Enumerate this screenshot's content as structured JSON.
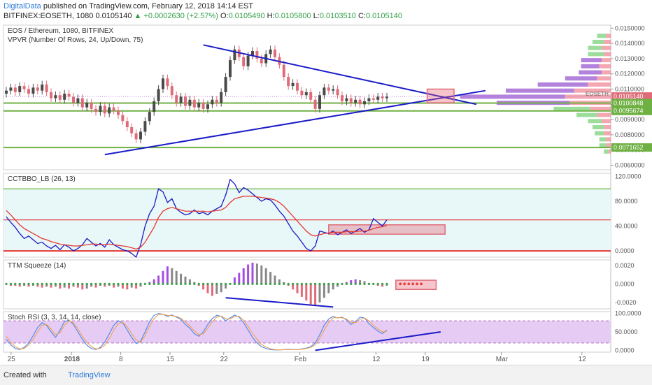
{
  "header": {
    "author": "DigitalData",
    "published_text": "published on TradingView.com, February 12, 2018 14:14 EST",
    "symbol": "BITFINEX:EOSETH, 1080",
    "last": "0.0105140",
    "change": "+0.0002630 (+2.57%)",
    "o_label": "O:",
    "o_value": "0.0105490",
    "h_label": "H:",
    "h_value": "0.0105800",
    "l_label": "L:",
    "l_value": "0.0103510",
    "c_label": "C:",
    "c_value": "0.0105140"
  },
  "footer": {
    "created_with": "Created with",
    "brand": "TradingView"
  },
  "colors": {
    "up": "#4a4a4a",
    "down": "#e06b78",
    "trend": "#1a1ac8",
    "support": "#6fb043",
    "signal": "#e53935",
    "squeeze_pos": "#a64ce0",
    "vpvr_up": "#7bd17b",
    "vpvr_down": "#f08a95",
    "vpvr_purple": "#9a58d0"
  },
  "chart_data": [
    {
      "type": "candlestick",
      "title": "EOS / Ethereum, 1080, BITFINEX",
      "subtitle": "VPVR (Number Of Rows, 24, Up/Down, 75)",
      "x_ticks": [
        "25",
        "2018",
        "8",
        "15",
        "22",
        "Feb",
        "12",
        "19",
        "Mar",
        "12"
      ],
      "ylim": [
        0.0057,
        0.0152
      ],
      "y_ticks": [
        "0.0150000",
        "0.0140000",
        "0.0130000",
        "0.0120000",
        "0.0110000",
        "0.0100000",
        "0.0090000",
        "0.0080000",
        "0.0070000",
        "0.0060000"
      ],
      "price_labels": [
        {
          "text": "0.0105140",
          "value": 0.010514,
          "color": "#e06b78"
        },
        {
          "text": "0.0100848",
          "value": 0.0100848,
          "color": "#6fb043"
        },
        {
          "text": "0.0095674",
          "value": 0.0095674,
          "color": "#6fb043"
        },
        {
          "text": "0.0071652",
          "value": 0.0071652,
          "color": "#6fb043"
        }
      ],
      "support_levels": [
        0.0100848,
        0.0095674,
        0.0071652
      ],
      "last_price": 0.010514,
      "vpvr_marker": "EOSETH",
      "closes": [
        0.0109,
        0.0111,
        0.0108,
        0.0112,
        0.011,
        0.0107,
        0.0111,
        0.0109,
        0.0113,
        0.0108,
        0.0104,
        0.0106,
        0.0103,
        0.0107,
        0.0105,
        0.0101,
        0.0104,
        0.0098,
        0.0101,
        0.0097,
        0.0095,
        0.0099,
        0.0094,
        0.0098,
        0.0096,
        0.0093,
        0.0089,
        0.0085,
        0.0081,
        0.0077,
        0.0082,
        0.0089,
        0.0095,
        0.0102,
        0.011,
        0.0117,
        0.0112,
        0.0106,
        0.0101,
        0.0105,
        0.0099,
        0.0103,
        0.0098,
        0.0101,
        0.0097,
        0.01,
        0.0103,
        0.0101,
        0.0108,
        0.0118,
        0.0129,
        0.0136,
        0.0131,
        0.0125,
        0.0132,
        0.0135,
        0.013,
        0.0127,
        0.0133,
        0.0136,
        0.0131,
        0.0126,
        0.0118,
        0.0112,
        0.0114,
        0.0109,
        0.0106,
        0.0108,
        0.0103,
        0.0097,
        0.0106,
        0.0111,
        0.0109,
        0.011,
        0.0106,
        0.0102,
        0.0104,
        0.0101,
        0.0103,
        0.01,
        0.0102,
        0.0104,
        0.0103,
        0.0105,
        0.0104,
        0.0105
      ],
      "trendlines": [
        {
          "from": [
            44,
            0.0139
          ],
          "to": [
            105,
            0.01
          ]
        },
        {
          "from": [
            22,
            0.0067
          ],
          "to": [
            107,
            0.0109
          ]
        }
      ],
      "highlight_box": {
        "x": [
          94,
          100
        ],
        "y": [
          0.0101,
          0.011
        ]
      },
      "vpvr": [
        {
          "price": 0.0145,
          "up": 0.4,
          "down": 0.2
        },
        {
          "price": 0.0141,
          "up": 0.5,
          "down": 0.3
        },
        {
          "price": 0.0137,
          "up": 0.6,
          "down": 0.4
        },
        {
          "price": 0.0133,
          "up": 0.7,
          "down": 0.3
        },
        {
          "price": 0.0129,
          "up": 0.9,
          "down": 0.4,
          "purple": true
        },
        {
          "price": 0.0125,
          "up": 0.8,
          "down": 0.5,
          "purple": true
        },
        {
          "price": 0.0121,
          "up": 1.0,
          "down": 0.4,
          "purple": true
        },
        {
          "price": 0.0117,
          "up": 1.4,
          "down": 0.6,
          "purple": true
        },
        {
          "price": 0.0113,
          "up": 2.2,
          "down": 1.0,
          "purple": true
        },
        {
          "price": 0.0109,
          "up": 3.0,
          "down": 1.6,
          "purple": true
        },
        {
          "price": 0.0105,
          "up": 4.6,
          "down": 2.0,
          "purple": true
        },
        {
          "price": 0.0101,
          "up": 3.2,
          "down": 1.8,
          "purple": true
        },
        {
          "price": 0.0097,
          "up": 1.6,
          "down": 0.9
        },
        {
          "price": 0.0093,
          "up": 0.9,
          "down": 0.6
        },
        {
          "price": 0.0089,
          "up": 0.6,
          "down": 0.4
        },
        {
          "price": 0.0085,
          "up": 0.5,
          "down": 0.3
        },
        {
          "price": 0.0081,
          "up": 0.4,
          "down": 0.3
        },
        {
          "price": 0.0077,
          "up": 0.3,
          "down": 0.2
        },
        {
          "price": 0.0073,
          "up": 0.3,
          "down": 0.2
        },
        {
          "price": 0.0069,
          "up": 0.2,
          "down": 0.1
        }
      ]
    },
    {
      "type": "line",
      "title": "CCTBBO_LB (26, 13)",
      "ylim": [
        -10,
        125
      ],
      "y_ticks": [
        "120.0000",
        "80.0000",
        "40.0000",
        "0.0000"
      ],
      "levels": [
        {
          "value": 100,
          "color": "#6fb043"
        },
        {
          "value": 50,
          "color": "#e53935"
        },
        {
          "value": 0,
          "color": "#e53935"
        }
      ],
      "series": [
        {
          "color": "#1a1ac8",
          "values": [
            55,
            46,
            38,
            28,
            20,
            24,
            18,
            12,
            14,
            8,
            4,
            9,
            2,
            10,
            6,
            0,
            4,
            10,
            20,
            14,
            8,
            12,
            6,
            18,
            10,
            6,
            2,
            0,
            -4,
            -10,
            10,
            40,
            60,
            72,
            100,
            95,
            78,
            84,
            68,
            62,
            58,
            60,
            66,
            60,
            62,
            58,
            64,
            68,
            72,
            90,
            115,
            108,
            94,
            102,
            98,
            92,
            86,
            80,
            84,
            82,
            74,
            64,
            56,
            44,
            32,
            24,
            14,
            4,
            0,
            8,
            32,
            30,
            28,
            32,
            26,
            30,
            34,
            28,
            32,
            36,
            30,
            34,
            52,
            46,
            40,
            50
          ]
        },
        {
          "color": "#e53935",
          "values": [
            65,
            58,
            50,
            42,
            36,
            32,
            28,
            24,
            20,
            18,
            15,
            13,
            11,
            10,
            9,
            8,
            8,
            9,
            10,
            11,
            11,
            10,
            10,
            11,
            10,
            9,
            8,
            7,
            5,
            3,
            6,
            14,
            26,
            38,
            54,
            64,
            68,
            70,
            68,
            66,
            64,
            64,
            64,
            64,
            64,
            63,
            64,
            65,
            66,
            70,
            78,
            84,
            86,
            88,
            88,
            88,
            87,
            86,
            85,
            84,
            82,
            78,
            72,
            64,
            56,
            48,
            40,
            32,
            26,
            24,
            26,
            28,
            29,
            30,
            30,
            30,
            31,
            31,
            31,
            32,
            32,
            33,
            36,
            38,
            39,
            41
          ]
        }
      ],
      "highlight_box": {
        "x": [
          72,
          98
        ],
        "y": [
          27,
          42
        ]
      }
    },
    {
      "type": "bar",
      "title": "TTM Squeeze (14)",
      "ylim": [
        -0.0027,
        0.0026
      ],
      "y_ticks": [
        "0.0020",
        "0.0000",
        "-0.0020"
      ],
      "values": [
        -0.0001,
        -0.0002,
        -0.0002,
        -0.0003,
        -0.0002,
        -0.0003,
        -0.0002,
        -0.0003,
        -0.0004,
        -0.0003,
        -0.0004,
        -0.0003,
        -0.0005,
        -0.0004,
        -0.0005,
        -0.0003,
        -0.0004,
        -0.0006,
        -0.0005,
        -0.0003,
        -0.0004,
        -0.0002,
        -0.0003,
        -0.0002,
        -0.0004,
        -0.0003,
        -0.0005,
        -0.0006,
        -0.0004,
        -0.0005,
        -0.0003,
        -0.0001,
        0.0002,
        0.0005,
        0.0009,
        0.0014,
        0.0019,
        0.0017,
        0.0014,
        0.0011,
        0.0008,
        0.0005,
        0.0002,
        -0.0002,
        -0.0006,
        -0.001,
        -0.0013,
        -0.0011,
        -0.0009,
        -0.0005,
        0.0001,
        0.0007,
        0.0012,
        0.0017,
        0.0021,
        0.0023,
        0.0022,
        0.002,
        0.0017,
        0.0013,
        0.0009,
        0.0005,
        0.0002,
        -0.0002,
        -0.0006,
        -0.001,
        -0.0014,
        -0.0018,
        -0.0022,
        -0.0024,
        -0.002,
        -0.0015,
        -0.001,
        -0.0006,
        -0.0003,
        0.0,
        0.0002,
        0.0004,
        0.0005,
        0.0004,
        0.0003,
        0.0001,
        -0.0001,
        -0.0002,
        -0.0003,
        -0.0002
      ],
      "trendline": {
        "from": [
          49,
          -0.0015
        ],
        "to": [
          73,
          -0.0025
        ]
      },
      "highlight_box": {
        "x": [
          87,
          96
        ],
        "y": [
          -0.0006,
          0.0004
        ]
      }
    },
    {
      "type": "line",
      "title": "Stoch RSI (3, 3, 14, 14, close)",
      "ylim": [
        -5,
        105
      ],
      "y_ticks": [
        "100.0000",
        "50.0000",
        "0.0000"
      ],
      "band": [
        20,
        80
      ],
      "series": [
        {
          "color": "#4a86e8",
          "values": [
            30,
            15,
            5,
            2,
            8,
            20,
            40,
            62,
            75,
            68,
            50,
            35,
            55,
            78,
            82,
            70,
            50,
            30,
            14,
            5,
            2,
            8,
            22,
            45,
            68,
            80,
            75,
            55,
            35,
            18,
            25,
            50,
            78,
            95,
            100,
            98,
            92,
            96,
            90,
            84,
            70,
            60,
            45,
            38,
            50,
            70,
            86,
            95,
            92,
            80,
            88,
            96,
            90,
            75,
            55,
            35,
            20,
            10,
            5,
            2,
            1,
            1,
            2,
            3,
            2,
            2,
            4,
            6,
            10,
            20,
            42,
            68,
            85,
            92,
            88,
            90,
            82,
            70,
            78,
            90,
            88,
            72,
            62,
            52,
            45,
            55
          ]
        },
        {
          "color": "#f0a050",
          "values": [
            38,
            22,
            10,
            4,
            5,
            14,
            30,
            50,
            68,
            70,
            58,
            42,
            48,
            68,
            80,
            75,
            58,
            38,
            22,
            10,
            4,
            5,
            14,
            32,
            55,
            72,
            76,
            64,
            45,
            28,
            22,
            40,
            65,
            86,
            97,
            98,
            95,
            94,
            92,
            87,
            77,
            66,
            53,
            42,
            45,
            60,
            77,
            90,
            93,
            86,
            85,
            92,
            92,
            82,
            65,
            46,
            30,
            16,
            9,
            4,
            2,
            1,
            2,
            2,
            2,
            2,
            3,
            5,
            8,
            15,
            32,
            55,
            76,
            88,
            89,
            88,
            85,
            76,
            75,
            84,
            88,
            80,
            68,
            58,
            50,
            52
          ]
        }
      ],
      "trendline": {
        "from": [
          69,
          0
        ],
        "to": [
          97,
          50
        ]
      }
    }
  ]
}
